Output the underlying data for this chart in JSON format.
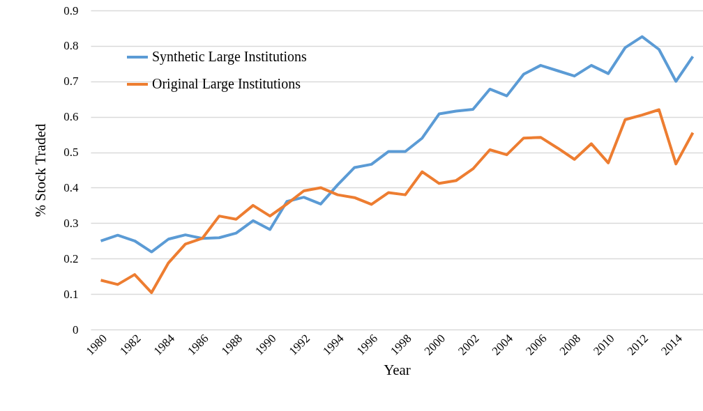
{
  "chart_data": {
    "type": "line",
    "xlabel": "Year",
    "ylabel": "% Stock Traded",
    "categories": [
      "1980",
      null,
      "1982",
      null,
      "1984",
      null,
      "1986",
      null,
      "1988",
      null,
      "1990",
      null,
      "1992",
      null,
      "1994",
      null,
      "1996",
      null,
      "1998",
      null,
      "2000",
      null,
      "2002",
      null,
      "2004",
      null,
      "2006",
      null,
      "2008",
      null,
      "2010",
      null,
      "2012",
      null,
      "2014",
      null
    ],
    "series": [
      {
        "name": "Synthetic Large Institutions",
        "color": "#5b9bd5",
        "values": [
          0.25,
          0.266,
          0.25,
          0.219,
          0.255,
          0.267,
          0.257,
          0.259,
          0.272,
          0.307,
          0.282,
          0.361,
          0.373,
          0.354,
          0.408,
          0.457,
          0.466,
          0.502,
          0.502,
          0.54,
          0.608,
          0.616,
          0.621,
          0.678,
          0.659,
          0.72,
          0.745,
          0.73,
          0.715,
          0.745,
          0.722,
          0.795,
          0.826,
          0.79,
          0.7,
          0.77
        ]
      },
      {
        "name": "Original Large Institutions",
        "color": "#ed7d31",
        "values": [
          0.139,
          0.127,
          0.155,
          0.104,
          0.188,
          0.241,
          0.257,
          0.32,
          0.311,
          0.35,
          0.32,
          0.354,
          0.391,
          0.4,
          0.38,
          0.372,
          0.353,
          0.386,
          0.38,
          0.445,
          0.412,
          0.42,
          0.453,
          0.507,
          0.493,
          0.54,
          0.542,
          0.512,
          0.48,
          0.524,
          0.47,
          0.592,
          0.605,
          0.62,
          0.467,
          0.555
        ]
      }
    ],
    "ylim": [
      0,
      0.9
    ],
    "yticks": [
      0,
      0.1,
      0.2,
      0.3,
      0.4,
      0.5,
      0.6,
      0.7,
      0.8,
      0.9
    ],
    "grid": "y",
    "legend": "top left",
    "marker": "none",
    "line_style": "solid"
  }
}
